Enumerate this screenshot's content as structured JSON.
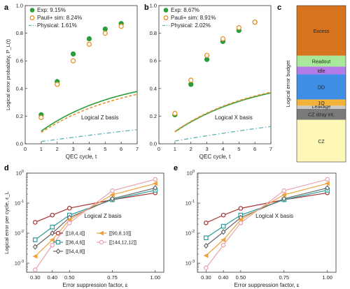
{
  "figure": {
    "panel_letters": [
      "a",
      "b",
      "c",
      "d",
      "e"
    ]
  },
  "colors": {
    "exp": "#2a9d3a",
    "sim": "#e8922a",
    "phys": "#5fb3b3",
    "axis": "#333333"
  },
  "chart_data": [
    {
      "panel": "a",
      "type": "line",
      "xlabel": "QEC cycle, t",
      "ylabel": "Logical error probability, P_L(t)",
      "xlim": [
        0,
        7
      ],
      "ylim": [
        0,
        1
      ],
      "xticks": [
        0,
        1,
        2,
        3,
        4,
        5,
        6,
        7
      ],
      "yticks": [
        0.0,
        0.2,
        0.4,
        0.6,
        0.8,
        1.0
      ],
      "annotation": "Logical Z basis",
      "legend_position": "top-left",
      "series": [
        {
          "name": "Exp: 9.15%",
          "kind": "points",
          "marker": "filled-circle",
          "x": [
            1,
            2,
            3,
            4,
            5,
            6
          ],
          "y": [
            0.21,
            0.45,
            0.65,
            0.76,
            0.83,
            0.87
          ]
        },
        {
          "name": "Pauli+ sim: 8.24%",
          "kind": "points",
          "marker": "open-circle",
          "x": [
            1,
            2,
            3,
            4,
            5,
            6
          ],
          "y": [
            0.19,
            0.43,
            0.6,
            0.72,
            0.8,
            0.85
          ]
        },
        {
          "name": "Exp fit",
          "kind": "line",
          "style": "solid",
          "rate": 0.0915
        },
        {
          "name": "Sim fit",
          "kind": "line",
          "style": "dashed",
          "rate": 0.0824
        },
        {
          "name": "Physical: 1.61%",
          "kind": "line",
          "style": "dashdot",
          "rate": 0.0161
        }
      ]
    },
    {
      "panel": "b",
      "type": "line",
      "xlabel": "QEC cycle, t",
      "ylabel": "",
      "xlim": [
        0,
        7
      ],
      "ylim": [
        0,
        1
      ],
      "xticks": [
        0,
        1,
        2,
        3,
        4,
        5,
        6,
        7
      ],
      "yticks": [
        0.0,
        0.2,
        0.4,
        0.6,
        0.8,
        1.0
      ],
      "annotation": "Logical X basis",
      "legend_position": "top-left",
      "series": [
        {
          "name": "Exp: 8.67%",
          "kind": "points",
          "marker": "filled-circle",
          "x": [
            1,
            2,
            3,
            4,
            5,
            6
          ],
          "y": [
            0.21,
            0.43,
            0.61,
            0.74,
            0.82,
            0.88
          ]
        },
        {
          "name": "Pauli+ sim: 8.91%",
          "kind": "points",
          "marker": "open-circle",
          "x": [
            1,
            2,
            3,
            4,
            5,
            6
          ],
          "y": [
            0.22,
            0.46,
            0.64,
            0.76,
            0.84,
            0.88
          ]
        },
        {
          "name": "Exp fit",
          "kind": "line",
          "style": "solid",
          "rate": 0.0867
        },
        {
          "name": "Sim fit",
          "kind": "line",
          "style": "dashed",
          "rate": 0.0891
        },
        {
          "name": "Physical: 2.02%",
          "kind": "line",
          "style": "dashdot",
          "rate": 0.0202
        }
      ]
    },
    {
      "panel": "c",
      "type": "bar",
      "stacked": true,
      "ylabel": "Logical error budget",
      "segments": [
        {
          "label": "CZ",
          "value": 0.27,
          "color": "#fdf7b8"
        },
        {
          "label": "CZ stray int.",
          "value": 0.07,
          "color": "#7a7a7a"
        },
        {
          "label": "Leakage",
          "value": 0.02,
          "color": "#c8c8c8"
        },
        {
          "label": "1Q",
          "value": 0.04,
          "color": "#f2b23a"
        },
        {
          "label": "DD",
          "value": 0.16,
          "color": "#3f8ee6"
        },
        {
          "label": "Idle",
          "value": 0.05,
          "color": "#b47ae8"
        },
        {
          "label": "Readout",
          "value": 0.07,
          "color": "#a9e89a"
        },
        {
          "label": "Excess",
          "value": 0.32,
          "color": "#d9741e"
        }
      ]
    },
    {
      "panel": "d",
      "type": "line",
      "xlabel": "Error suppression factor, ε",
      "ylabel": "Logical error per cycle, ε_L",
      "xscale": "linear",
      "yscale": "log",
      "xlim": [
        0.25,
        1.05
      ],
      "ylim": [
        0.0005,
        1
      ],
      "xticks": [
        "0.30",
        "0.40",
        "0.50",
        "0.75",
        "1.00"
      ],
      "annotation": "Logical Z basis",
      "legend_position": "bottom-center",
      "series": [
        {
          "name": "[[18,4,4]]",
          "color": "#a83232",
          "marker": "circle",
          "x": [
            0.3,
            0.4,
            0.5,
            0.75,
            1.0
          ],
          "y": [
            0.023,
            0.04,
            0.068,
            0.13,
            0.22
          ]
        },
        {
          "name": "[[36,4,6]]",
          "color": "#2a9a9a",
          "marker": "square",
          "x": [
            0.3,
            0.4,
            0.5,
            0.75,
            1.0
          ],
          "y": [
            0.006,
            0.016,
            0.04,
            0.13,
            0.27
          ]
        },
        {
          "name": "[[54,4,8]]",
          "color": "#666666",
          "marker": "diamond",
          "x": [
            0.3,
            0.4,
            0.5,
            0.75,
            1.0
          ],
          "y": [
            0.0035,
            0.01,
            0.033,
            0.14,
            0.32
          ]
        },
        {
          "name": "[[90,8,10]]",
          "color": "#f0a03c",
          "marker": "triangle-left",
          "x": [
            0.3,
            0.4,
            0.5,
            0.75,
            1.0
          ],
          "y": [
            0.0017,
            0.006,
            0.028,
            0.19,
            0.45
          ]
        },
        {
          "name": "[[144,12,12]]",
          "color": "#e6a3ad",
          "marker": "circle",
          "x": [
            0.3,
            0.4,
            0.5,
            0.75,
            1.0
          ],
          "y": [
            0.0006,
            0.004,
            0.022,
            0.26,
            0.62
          ]
        }
      ]
    },
    {
      "panel": "e",
      "type": "line",
      "xlabel": "Error suppression factor, ε",
      "ylabel": "",
      "xscale": "linear",
      "yscale": "log",
      "xlim": [
        0.25,
        1.05
      ],
      "ylim": [
        0.0005,
        1
      ],
      "xticks": [
        "0.30",
        "0.40",
        "0.50",
        "0.75",
        "1.00"
      ],
      "annotation": "Logical X basis",
      "series": [
        {
          "name": "[[18,4,4]]",
          "color": "#a83232",
          "marker": "circle",
          "x": [
            0.3,
            0.4,
            0.5,
            0.75,
            1.0
          ],
          "y": [
            0.022,
            0.04,
            0.067,
            0.13,
            0.22
          ]
        },
        {
          "name": "[[36,4,6]]",
          "color": "#2a9a9a",
          "marker": "square",
          "x": [
            0.3,
            0.4,
            0.5,
            0.75,
            1.0
          ],
          "y": [
            0.007,
            0.017,
            0.04,
            0.13,
            0.27
          ]
        },
        {
          "name": "[[54,4,8]]",
          "color": "#666666",
          "marker": "diamond",
          "x": [
            0.3,
            0.4,
            0.5,
            0.75,
            1.0
          ],
          "y": [
            0.0038,
            0.011,
            0.033,
            0.14,
            0.32
          ]
        },
        {
          "name": "[[90,8,10]]",
          "color": "#f0a03c",
          "marker": "triangle-left",
          "x": [
            0.3,
            0.4,
            0.5,
            0.75,
            1.0
          ],
          "y": [
            0.0018,
            0.006,
            0.028,
            0.19,
            0.45
          ]
        },
        {
          "name": "[[144,12,12]]",
          "color": "#e6a3ad",
          "marker": "circle",
          "x": [
            0.3,
            0.4,
            0.5,
            0.75,
            1.0
          ],
          "y": [
            0.0007,
            0.004,
            0.022,
            0.26,
            0.62
          ]
        }
      ]
    }
  ]
}
